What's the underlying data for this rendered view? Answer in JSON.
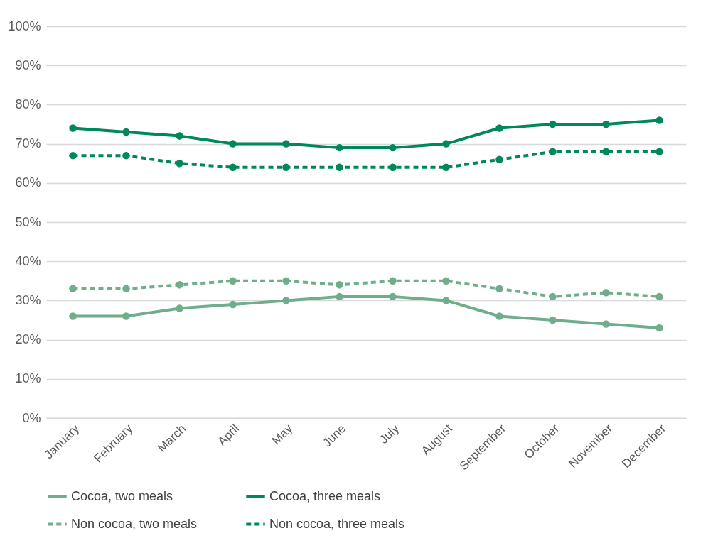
{
  "chart_data": {
    "type": "line",
    "categories": [
      "January",
      "February",
      "March",
      "April",
      "May",
      "June",
      "July",
      "August",
      "September",
      "October",
      "November",
      "December"
    ],
    "series": [
      {
        "name": "Cocoa, two meals",
        "color": "#70ad8b",
        "line_style": "solid",
        "values": [
          26,
          26,
          28,
          29,
          30,
          31,
          31,
          30,
          26,
          25,
          24,
          23
        ]
      },
      {
        "name": "Cocoa, three meals",
        "color": "#00875a",
        "line_style": "solid",
        "values": [
          74,
          73,
          72,
          70,
          70,
          69,
          69,
          70,
          74,
          75,
          75,
          76
        ]
      },
      {
        "name": "Non cocoa, two meals",
        "color": "#70ad8b",
        "line_style": "dashed",
        "values": [
          33,
          33,
          34,
          35,
          35,
          34,
          35,
          35,
          33,
          31,
          32,
          31
        ]
      },
      {
        "name": "Non cocoa, three meals",
        "color": "#00875a",
        "line_style": "dashed",
        "values": [
          67,
          67,
          65,
          64,
          64,
          64,
          64,
          64,
          66,
          68,
          68,
          68
        ]
      }
    ],
    "ylim": [
      0,
      100
    ],
    "yticks": [
      {
        "value": 0,
        "label": "0%"
      },
      {
        "value": 10,
        "label": "10%"
      },
      {
        "value": 20,
        "label": "20%"
      },
      {
        "value": 30,
        "label": "30%"
      },
      {
        "value": 40,
        "label": "40%"
      },
      {
        "value": 50,
        "label": "50%"
      },
      {
        "value": 60,
        "label": "60%"
      },
      {
        "value": 70,
        "label": "70%"
      },
      {
        "value": 80,
        "label": "80%"
      },
      {
        "value": 90,
        "label": "90%"
      },
      {
        "value": 100,
        "label": "100%"
      }
    ],
    "grid": "y",
    "legend": "bottom",
    "marker": "circle"
  }
}
